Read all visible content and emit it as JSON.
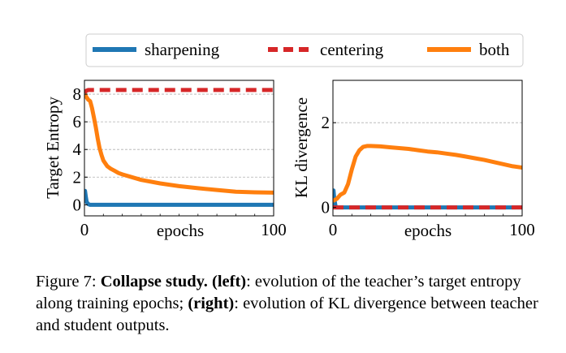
{
  "legend": {
    "items": [
      {
        "label": "sharpening",
        "color": "#1f77b4",
        "dash": "solid"
      },
      {
        "label": "centering",
        "color": "#d62728",
        "dash": "dashed"
      },
      {
        "label": "both",
        "color": "#ff7f0e",
        "dash": "solid"
      }
    ]
  },
  "chart_data": [
    {
      "type": "line",
      "title": "",
      "xlabel": "epochs",
      "ylabel": "Target Entropy",
      "xlim": [
        0,
        100
      ],
      "ylim": [
        -0.8,
        9.0
      ],
      "xticks": [
        0,
        100
      ],
      "xtick_labels": [
        "0",
        "100"
      ],
      "yticks": [
        0,
        2,
        4,
        6,
        8
      ],
      "ytick_labels": [
        "0",
        "2",
        "4",
        "6",
        "8"
      ],
      "grid": "horizontal-dashed",
      "series": [
        {
          "name": "sharpening",
          "color": "#1f77b4",
          "x": [
            0,
            0.3,
            0.7,
            1.2,
            2,
            3,
            100
          ],
          "y": [
            0.5,
            1.0,
            0.6,
            0.2,
            0.05,
            0.0,
            0.0
          ]
        },
        {
          "name": "centering",
          "color": "#d62728",
          "x": [
            0,
            1,
            2,
            100
          ],
          "y": [
            8.1,
            8.25,
            8.3,
            8.3
          ]
        },
        {
          "name": "both",
          "color": "#ff7f0e",
          "x": [
            0,
            1,
            2,
            3,
            4,
            5,
            6,
            7,
            8,
            9,
            10,
            11,
            12,
            14,
            16,
            18,
            20,
            25,
            30,
            40,
            50,
            60,
            70,
            80,
            90,
            100
          ],
          "y": [
            8.0,
            7.8,
            7.6,
            7.5,
            7.0,
            6.3,
            5.6,
            4.8,
            4.1,
            3.6,
            3.2,
            3.0,
            2.8,
            2.6,
            2.45,
            2.3,
            2.2,
            2.0,
            1.8,
            1.55,
            1.35,
            1.2,
            1.07,
            0.95,
            0.9,
            0.88
          ]
        }
      ]
    },
    {
      "type": "line",
      "title": "",
      "xlabel": "epochs",
      "ylabel": "KL divergence",
      "xlim": [
        0,
        100
      ],
      "ylim": [
        -0.2,
        3.0
      ],
      "xticks": [
        0,
        100
      ],
      "xtick_labels": [
        "0",
        "100"
      ],
      "yticks": [
        0,
        2
      ],
      "ytick_labels": [
        "0",
        "2"
      ],
      "grid": "horizontal-dashed",
      "series": [
        {
          "name": "sharpening",
          "color": "#1f77b4",
          "x": [
            0,
            0.3,
            0.7,
            1.5,
            100
          ],
          "y": [
            0.1,
            0.4,
            0.2,
            0.0,
            0.0
          ]
        },
        {
          "name": "centering",
          "color": "#d62728",
          "x": [
            0,
            100
          ],
          "y": [
            0.0,
            0.0
          ]
        },
        {
          "name": "both",
          "color": "#ff7f0e",
          "x": [
            0,
            2,
            4,
            6,
            8,
            10,
            12,
            14,
            16,
            18,
            20,
            25,
            30,
            35,
            40,
            45,
            50,
            55,
            60,
            65,
            70,
            75,
            80,
            85,
            90,
            95,
            100
          ],
          "y": [
            0.15,
            0.2,
            0.3,
            0.35,
            0.55,
            0.9,
            1.2,
            1.35,
            1.43,
            1.45,
            1.45,
            1.44,
            1.42,
            1.4,
            1.38,
            1.35,
            1.32,
            1.3,
            1.27,
            1.24,
            1.2,
            1.16,
            1.12,
            1.07,
            1.02,
            0.97,
            0.94
          ]
        }
      ]
    }
  ],
  "caption": {
    "prefix": "Figure 7: ",
    "bold1": "Collapse study.",
    "gap1": " ",
    "bold2": "(left)",
    "text1": ": evolution of the teacher’s target entropy along training epochs; ",
    "bold3": "(right)",
    "text2": ": evolution of KL divergence between teacher and student outputs."
  }
}
